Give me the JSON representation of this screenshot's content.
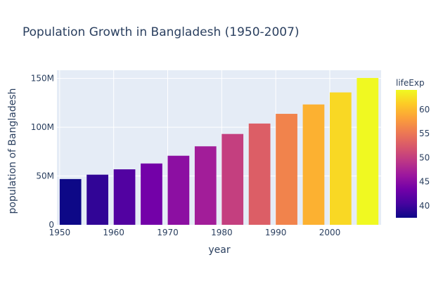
{
  "chart_data": {
    "type": "bar",
    "title": "Population Growth in Bangladesh (1950-2007)",
    "xlabel": "year",
    "ylabel": "population of Bangladesh",
    "x": [
      1952,
      1957,
      1962,
      1967,
      1972,
      1977,
      1982,
      1987,
      1992,
      1997,
      2002,
      2007
    ],
    "values": [
      46886859,
      51365468,
      56839289,
      62821884,
      70759295,
      80428306,
      93074406,
      103764241,
      113704579,
      123315288,
      135656790,
      150448339
    ],
    "color_values": [
      37.484,
      39.348,
      41.216,
      43.453,
      45.252,
      46.923,
      50.009,
      52.819,
      56.018,
      59.412,
      62.013,
      64.062
    ],
    "xlim": [
      1949.5,
      2009.5
    ],
    "ylim": [
      0,
      158366672
    ],
    "x_ticks": [
      1950,
      1960,
      1970,
      1980,
      1990,
      2000
    ],
    "x_tick_labels": [
      "1950",
      "1960",
      "1970",
      "1980",
      "1990",
      "2000"
    ],
    "y_ticks": [
      0,
      50000000,
      100000000,
      150000000
    ],
    "y_tick_labels": [
      "0",
      "50M",
      "100M",
      "150M"
    ],
    "grid": true,
    "colorbar": {
      "title": "lifeExp",
      "range": [
        37.484,
        64.062
      ],
      "ticks": [
        40,
        45,
        50,
        55,
        60
      ],
      "tick_labels": [
        "40",
        "45",
        "50",
        "55",
        "60"
      ],
      "colorscale": [
        "#0d0887",
        "#46039f",
        "#7201a8",
        "#9c179e",
        "#bd3786",
        "#d8576b",
        "#ed7953",
        "#fb9f3a",
        "#fdca26",
        "#f0f921"
      ]
    },
    "plot_bg": "#e5ecf6",
    "text_color": "#2a3f5f"
  }
}
